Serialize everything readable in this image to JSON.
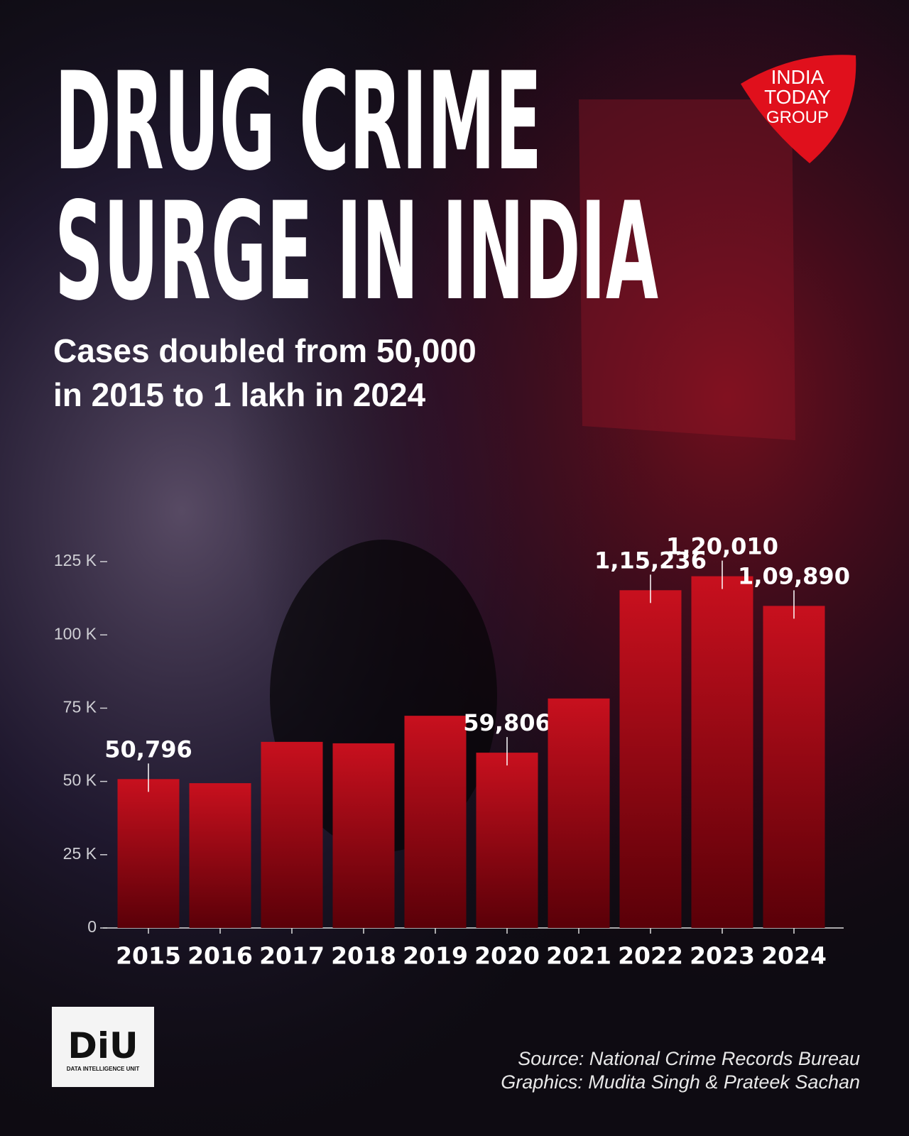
{
  "chart_data": {
    "type": "bar",
    "title": [
      "DRUG CRIME",
      "SURGE IN INDIA"
    ],
    "subtitle": [
      "Cases doubled from 50,000",
      "in 2015 to 1 lakh in 2024"
    ],
    "categories": [
      "2015",
      "2016",
      "2017",
      "2018",
      "2019",
      "2020",
      "2021",
      "2022",
      "2023",
      "2024"
    ],
    "values": [
      50796,
      49400,
      63500,
      63000,
      72400,
      59806,
      78300,
      115236,
      120010,
      109890
    ],
    "value_labels": [
      "50,796",
      null,
      null,
      null,
      null,
      "59,806",
      null,
      "1,15,236",
      "1,20,010",
      "1,09,890"
    ],
    "color": "#c8101e",
    "ylim": [
      0,
      125000
    ],
    "yticks": [
      0,
      {
        "value": 25000,
        "label": "25 K"
      },
      {
        "value": 50000,
        "label": "50 K"
      },
      {
        "value": 75000,
        "label": "75 K"
      },
      {
        "value": 100000,
        "label": "100 K"
      },
      {
        "value": 125000,
        "label": "125 K"
      }
    ],
    "grid": false,
    "source": "Source: National Crime Records Bureau",
    "credit": "Graphics: Mudita Singh & Prateek Sachan"
  },
  "logo": {
    "lines": [
      "INDIA",
      "TODAY",
      "GROUP"
    ]
  },
  "unit_logo": {
    "name": "DiU",
    "full": "DATA INTELLIGENCE UNIT"
  }
}
